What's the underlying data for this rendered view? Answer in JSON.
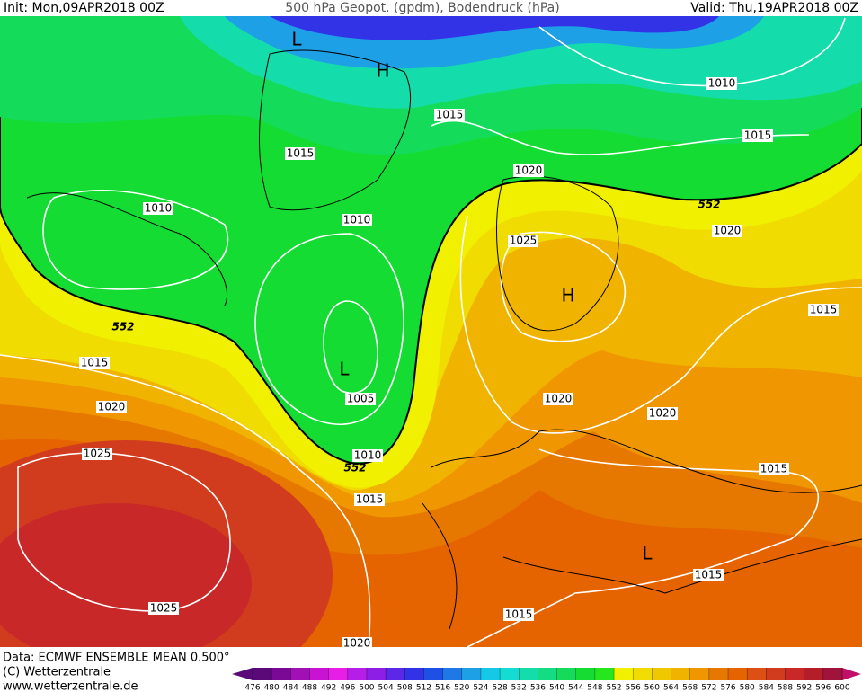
{
  "header": {
    "init": "Init: Mon,09APR2018 00Z",
    "title": "500 hPa Geopot. (gpdm), Bodendruck (hPa)",
    "valid": "Valid: Thu,19APR2018 00Z"
  },
  "map": {
    "contour_labels": [
      "1015",
      "1010",
      "1015",
      "1010",
      "1010",
      "1015",
      "1020",
      "552",
      "1020",
      "1025",
      "552",
      "1015",
      "1015",
      "1005",
      "1020",
      "1020",
      "1020",
      "1010",
      "552",
      "1025",
      "1015",
      "1015",
      "1015",
      "1025",
      "1015",
      "1020"
    ],
    "centers": [
      "H",
      "H",
      "L",
      "L",
      "L"
    ]
  },
  "footer": {
    "data": "Data: ECMWF ENSEMBLE MEAN 0.500°",
    "copyright": "(C) Wetterzentrale",
    "url": "www.wetterzentrale.de"
  },
  "colorbar": {
    "levels": [
      476,
      480,
      484,
      488,
      492,
      496,
      500,
      504,
      508,
      512,
      516,
      520,
      524,
      528,
      532,
      536,
      540,
      544,
      548,
      552,
      556,
      560,
      564,
      568,
      572,
      576,
      580,
      584,
      588,
      592,
      596,
      600
    ],
    "colors": [
      "#5a0a78",
      "#7a0a96",
      "#a010b4",
      "#c814d2",
      "#e61ee6",
      "#b41ee6",
      "#8c1ee6",
      "#5a28e6",
      "#3232e6",
      "#1e50e6",
      "#1e78e6",
      "#1ea0e6",
      "#14c8e6",
      "#14dcd2",
      "#14dcaa",
      "#14dc82",
      "#14dc5a",
      "#14dc32",
      "#28e61e",
      "#f0f000",
      "#f0dc00",
      "#f0c800",
      "#f0b400",
      "#f09600",
      "#e67800",
      "#e66400",
      "#dc5014",
      "#d23c1e",
      "#c82828",
      "#b41e28",
      "#a0143c"
    ]
  }
}
